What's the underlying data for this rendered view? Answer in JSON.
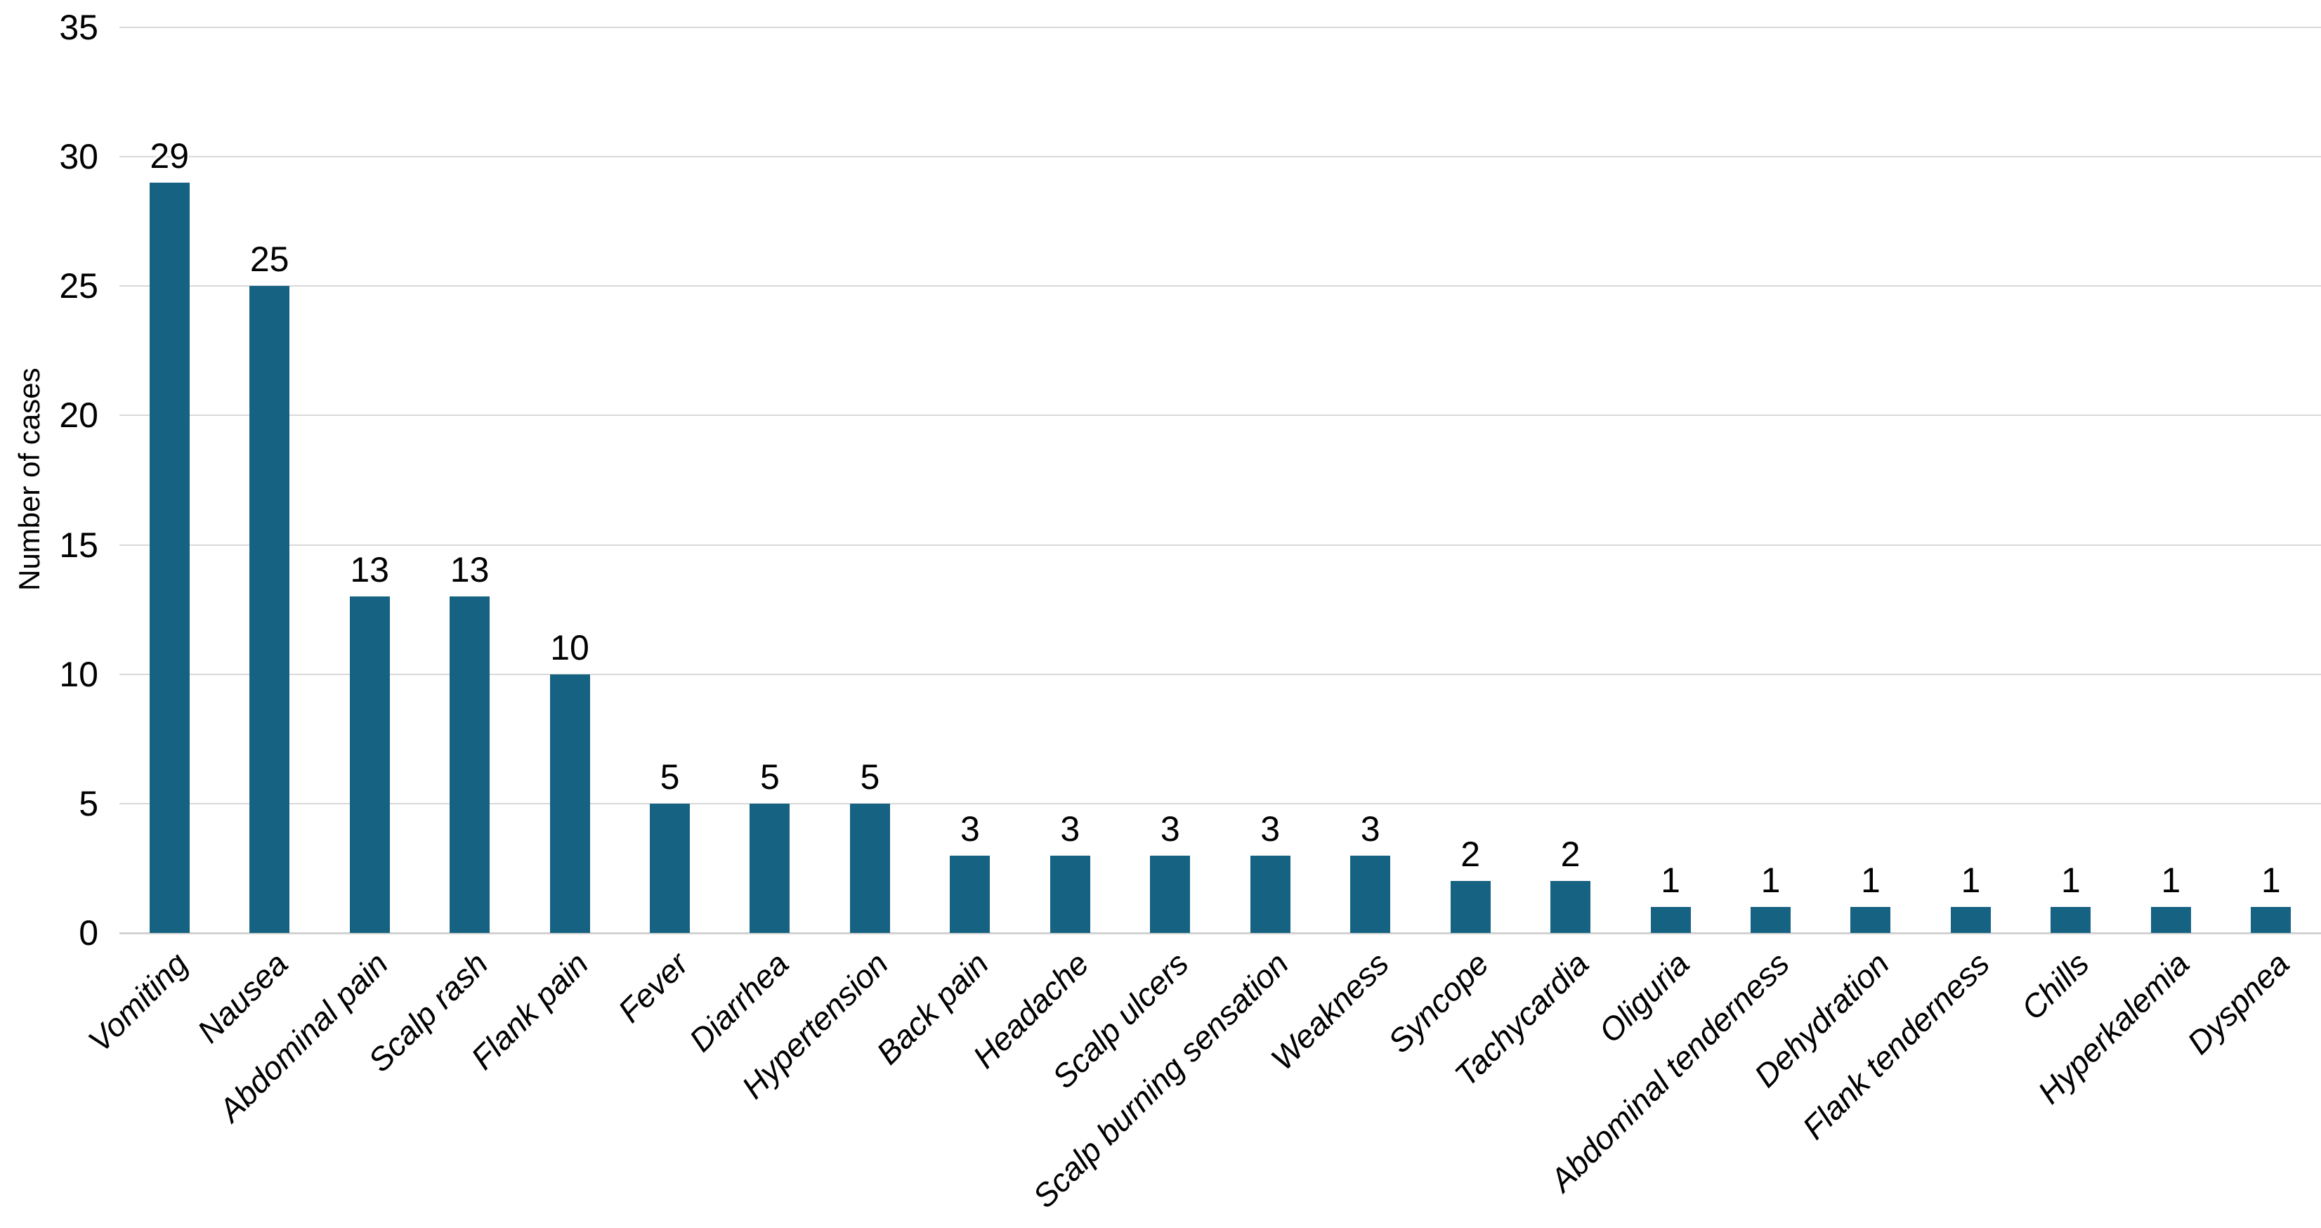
{
  "chart_data": {
    "type": "bar",
    "title": "",
    "xlabel": "",
    "ylabel": "Number of cases",
    "ylim": [
      0,
      35
    ],
    "ytick_step": 5,
    "grid": true,
    "legend": false,
    "show_value_labels": true,
    "bar_band_fraction": 0.4,
    "x_label_style": "italic, rotated 45deg",
    "colors": {
      "bar": "#166282",
      "gridline": "#d9d9d9",
      "axis_line": "#d2d2d2",
      "text": "#000000",
      "background": "#ffffff"
    },
    "categories": [
      "Vomiting",
      "Nausea",
      "Abdominal pain",
      "Scalp rash",
      "Flank pain",
      "Fever",
      "Diarrhea",
      "Hypertension",
      "Back pain",
      "Headache",
      "Scalp ulcers",
      "Scalp burning sensation",
      "Weakness",
      "Syncope",
      "Tachycardia",
      "Oliguria",
      "Abdominal tenderness",
      "Dehydration",
      "Flank tenderness",
      "Chills",
      "Hyperkalemia",
      "Dyspnea"
    ],
    "values": [
      29,
      25,
      13,
      13,
      10,
      5,
      5,
      5,
      3,
      3,
      3,
      3,
      3,
      2,
      2,
      1,
      1,
      1,
      1,
      1,
      1,
      1
    ]
  }
}
